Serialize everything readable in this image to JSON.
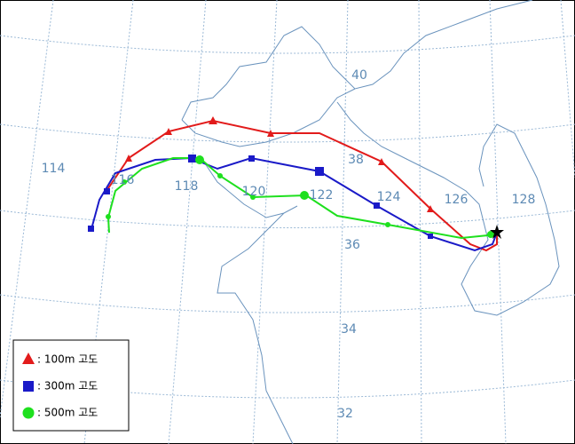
{
  "grid_labels": {
    "longitude": [
      "114",
      "116",
      "118",
      "120",
      "122",
      "124",
      "126",
      "128"
    ],
    "latitude": [
      "40",
      "38",
      "36",
      "34",
      "32"
    ]
  },
  "legend": [
    {
      "label": ": 100m 고도"
    },
    {
      "label": ": 300m 고도"
    },
    {
      "label": ": 500m 고도"
    }
  ]
}
